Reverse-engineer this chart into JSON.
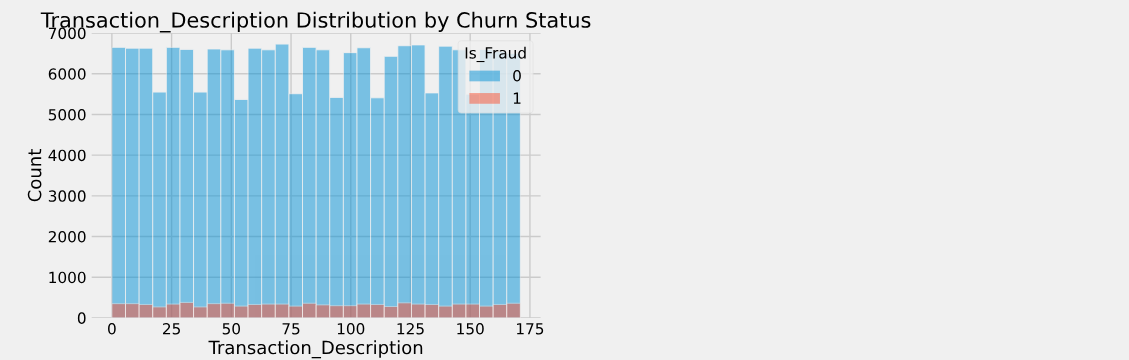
{
  "chart_data": {
    "type": "histogram",
    "title": "Transaction_Description Distribution by Churn Status",
    "xlabel": "Transaction_Description",
    "ylabel": "Count",
    "legend_title": "Is_Fraud",
    "bins": [
      0,
      5.7,
      11.4,
      17.1,
      22.8,
      28.5,
      34.2,
      39.9,
      45.6,
      51.3,
      57,
      62.7,
      68.4,
      74.1,
      79.8,
      85.5,
      91.2,
      96.9,
      102.6,
      108.3,
      114,
      119.7,
      125.4,
      131.1,
      136.8,
      142.5,
      148.2,
      153.9,
      159.6,
      165.3,
      171
    ],
    "series": [
      {
        "name": "0",
        "color": "#008fd5",
        "values": [
          6650,
          6630,
          6630,
          5550,
          6650,
          6600,
          5550,
          6610,
          6590,
          5370,
          6630,
          6590,
          6730,
          5510,
          6650,
          6590,
          5420,
          6520,
          6640,
          5410,
          6430,
          6690,
          6710,
          5530,
          6680,
          6590,
          5500,
          6600,
          6550,
          6500
        ]
      },
      {
        "name": "1",
        "color": "#fc4f30",
        "values": [
          350,
          350,
          330,
          270,
          340,
          380,
          270,
          350,
          360,
          290,
          330,
          340,
          340,
          290,
          360,
          320,
          300,
          300,
          340,
          330,
          280,
          370,
          340,
          330,
          290,
          340,
          340,
          290,
          330,
          360
        ]
      }
    ],
    "xlim": [
      -8.55,
      179.55
    ],
    "xticks": [
      0,
      25,
      50,
      75,
      100,
      125,
      150,
      175
    ],
    "ylim": [
      0,
      7000
    ],
    "yticks": [
      0,
      1000,
      2000,
      3000,
      4000,
      5000,
      6000,
      7000
    ],
    "grid": true,
    "legend": "top right"
  }
}
